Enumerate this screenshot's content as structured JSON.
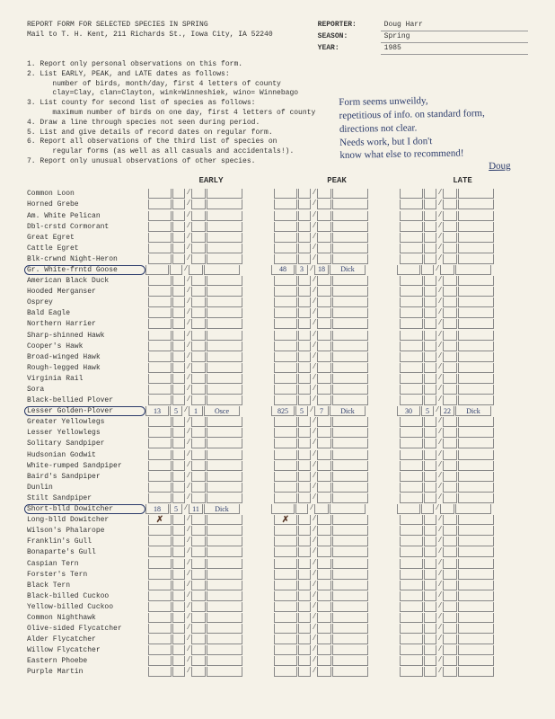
{
  "header": {
    "title": "REPORT FORM FOR SELECTED SPECIES IN SPRING",
    "mailto": "Mail to T. H. Kent, 211 Richards St., Iowa City, IA 52240",
    "reporter_label": "REPORTER:",
    "season_label": "SEASON:",
    "year_label": "YEAR:",
    "reporter": "Doug Harr",
    "season": "Spring",
    "year": "1985"
  },
  "instructions": [
    "1. Report only personal observations on this form.",
    "2. List EARLY, PEAK, and LATE dates as follows:",
    "   number of birds, month/day, first 4 letters of county",
    "   clay=Clay, clan=Clayton, wink=Winneshiek, wino= Winnebago",
    "3. List county for second list of species as follows:",
    "   maximum number of birds on one day, first 4 letters of county",
    "4. Draw a line through species not seen during period.",
    "5. List and give details of record dates on regular form.",
    "6. Report all observations of the third list of species on",
    "   regular forms (as well as all casuals and accidentals!).",
    "7. Report only unusual observations of other species."
  ],
  "handwriting": {
    "l1": "Form seems unweildy,",
    "l2": "repetitious of info. on standard form,",
    "l3": "directions not clear.",
    "l4": "Needs work, but I don't",
    "l5": "know what else to recommend!",
    "sig": "Doug"
  },
  "columns": {
    "early": "EARLY",
    "peak": "PEAK",
    "late": "LATE"
  },
  "species": [
    {
      "name": "Common Loon"
    },
    {
      "name": "Horned Grebe"
    },
    {
      "name": "Am. White Pelican"
    },
    {
      "name": "Dbl-crstd Cormorant"
    },
    {
      "name": "Great Egret"
    },
    {
      "name": "Cattle Egret"
    },
    {
      "name": "Blk-crwnd Night-Heron"
    },
    {
      "name": "Gr. White-frntd Goose",
      "circled": true,
      "peak": {
        "n": "48",
        "m": "3",
        "d": "18",
        "c": "Dick"
      }
    },
    {
      "name": "American Black Duck"
    },
    {
      "name": "Hooded Merganser"
    },
    {
      "name": "Osprey"
    },
    {
      "name": "Bald Eagle"
    },
    {
      "name": "Northern Harrier"
    },
    {
      "name": "Sharp-shinned Hawk"
    },
    {
      "name": "Cooper's Hawk"
    },
    {
      "name": "Broad-winged Hawk"
    },
    {
      "name": "Rough-legged Hawk"
    },
    {
      "name": "Virginia Rail"
    },
    {
      "name": "Sora"
    },
    {
      "name": "Black-bellied Plover"
    },
    {
      "name": "Lesser Golden-Plover",
      "circled": true,
      "early": {
        "n": "13",
        "m": "5",
        "d": "1",
        "c": "Osce"
      },
      "peak": {
        "n": "825",
        "m": "5",
        "d": "7",
        "c": "Dick"
      },
      "late": {
        "n": "30",
        "m": "5",
        "d": "22",
        "c": "Dick"
      }
    },
    {
      "name": "Greater Yellowlegs"
    },
    {
      "name": "Lesser Yellowlegs"
    },
    {
      "name": "Solitary Sandpiper"
    },
    {
      "name": "Hudsonian Godwit"
    },
    {
      "name": "White-rumped Sandpiper"
    },
    {
      "name": "Baird's Sandpiper"
    },
    {
      "name": "Dunlin"
    },
    {
      "name": "Stilt Sandpiper"
    },
    {
      "name": "Short-blld Dowitcher",
      "circled": true,
      "early": {
        "n": "18",
        "m": "5",
        "d": "11",
        "c": "Dick"
      }
    },
    {
      "name": "Long-blld Dowitcher",
      "strike": true,
      "early": {
        "n": "~"
      },
      "peak": {
        "n": "~"
      }
    },
    {
      "name": "Wilson's Phalarope"
    },
    {
      "name": "Franklin's Gull"
    },
    {
      "name": "Bonaparte's Gull"
    },
    {
      "name": "Caspian Tern"
    },
    {
      "name": "Forster's Tern"
    },
    {
      "name": "Black Tern"
    },
    {
      "name": "Black-billed Cuckoo"
    },
    {
      "name": "Yellow-billed Cuckoo"
    },
    {
      "name": "Common Nighthawk"
    },
    {
      "name": "Olive-sided Flycatcher"
    },
    {
      "name": "Alder Flycatcher"
    },
    {
      "name": "Willow Flycatcher"
    },
    {
      "name": "Eastern Phoebe"
    },
    {
      "name": "Purple Martin"
    }
  ]
}
